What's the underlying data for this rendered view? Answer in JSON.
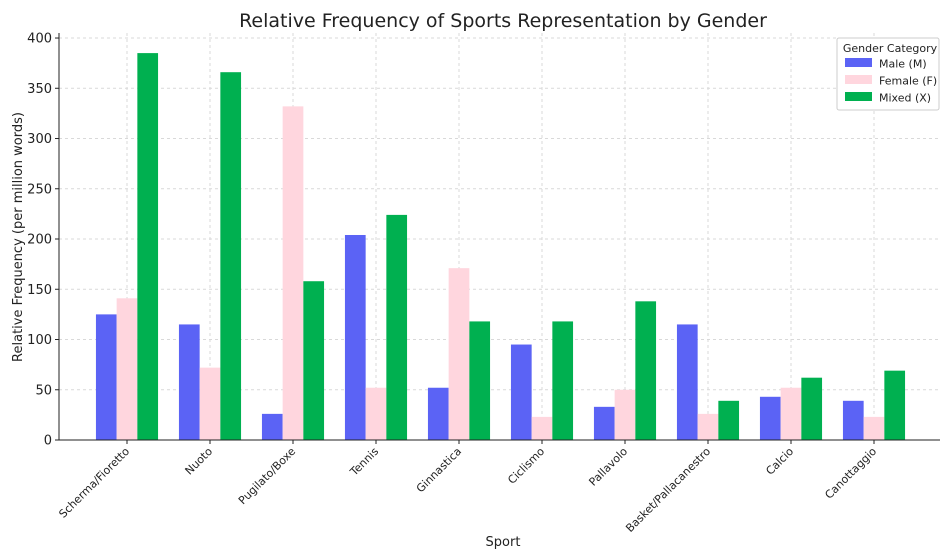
{
  "chart_data": {
    "type": "bar",
    "title": "Relative Frequency of Sports Representation by Gender",
    "xlabel": "Sport",
    "ylabel": "Relative Frequency (per million words)",
    "ylim": [
      0,
      405
    ],
    "yticks": [
      0,
      50,
      100,
      150,
      200,
      250,
      300,
      350,
      400
    ],
    "grid": true,
    "legend_placement": "top-right",
    "legend_title": "Gender Category",
    "categories": [
      "Scherma/Fioretto",
      "Nuoto",
      "Pugilato/Boxe",
      "Tennis",
      "Ginnastica",
      "Ciclismo",
      "Pallavolo",
      "Basket/Pallacanestro",
      "Calcio",
      "Canottaggio"
    ],
    "series": [
      {
        "name": "Male (M)",
        "color": "#5b63f5",
        "values": [
          125,
          115,
          26,
          204,
          52,
          95,
          33,
          115,
          43,
          39
        ]
      },
      {
        "name": "Female (F)",
        "color": "#ffd6de",
        "values": [
          141,
          72,
          332,
          52,
          171,
          23,
          50,
          26,
          52,
          23
        ]
      },
      {
        "name": "Mixed (X)",
        "color": "#00b050",
        "values": [
          385,
          366,
          158,
          224,
          118,
          118,
          138,
          39,
          62,
          69
        ]
      }
    ]
  }
}
